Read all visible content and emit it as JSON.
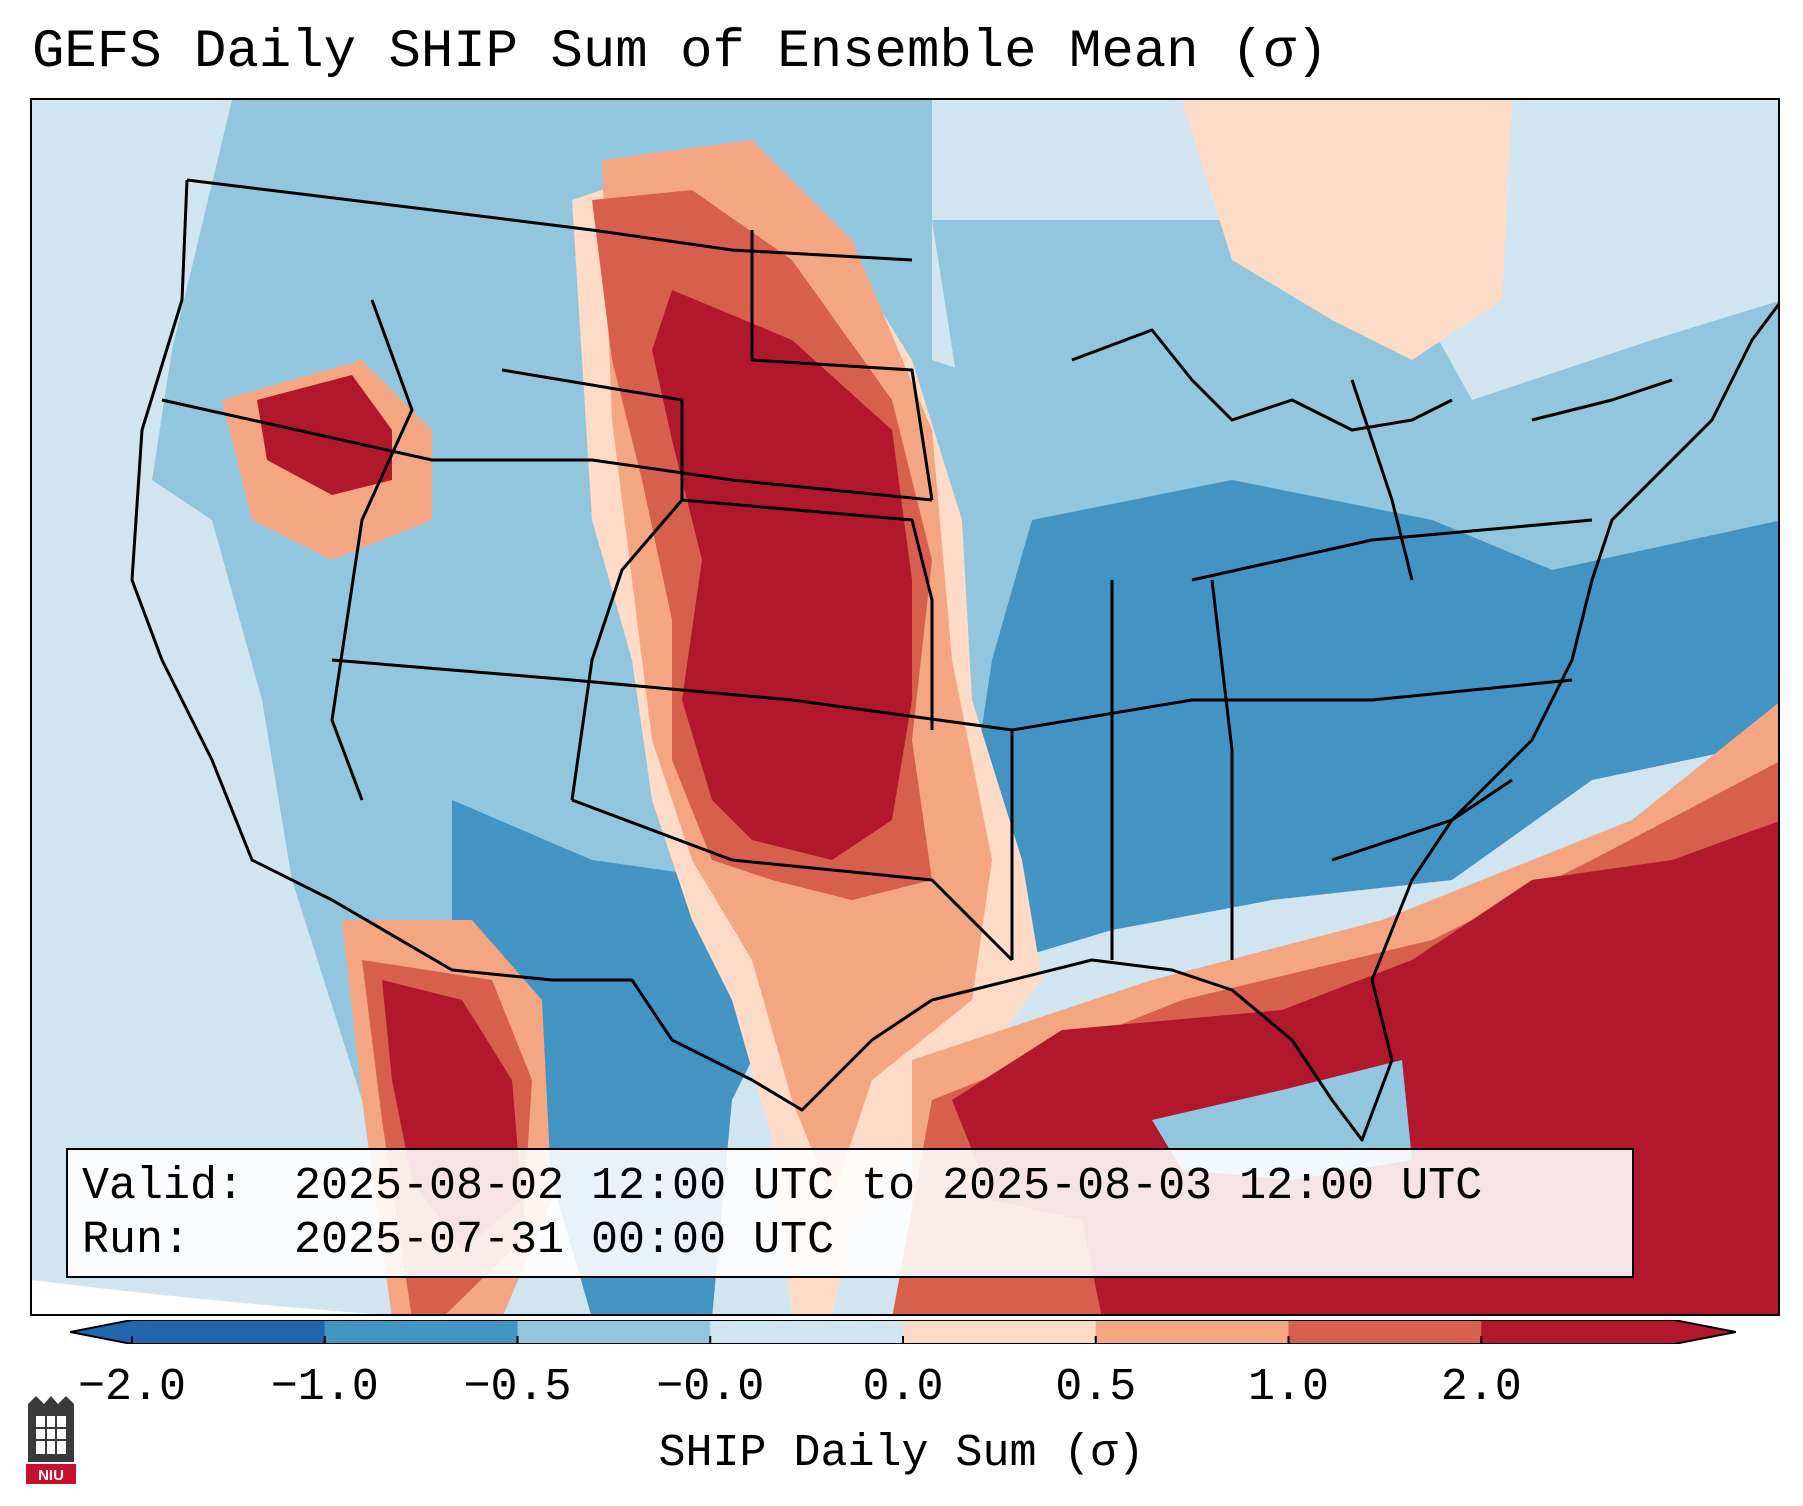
{
  "title": "GEFS Daily SHIP Sum of Ensemble Mean (σ)",
  "info": {
    "valid_label": "Valid:",
    "valid_value": "2025-08-02 12:00 UTC to 2025-08-03 12:00 UTC",
    "run_label": "Run:",
    "run_value": "2025-07-31 00:00 UTC"
  },
  "colorbar": {
    "label": "SHIP Daily Sum (σ)",
    "ticks": [
      "−2.0",
      "−1.0",
      "−0.5",
      "−0.0",
      "0.0",
      "0.5",
      "1.0",
      "2.0"
    ],
    "colors": [
      "#2166ac",
      "#4393c3",
      "#92c5de",
      "#d1e5f0",
      "#fddbc7",
      "#f4a582",
      "#d6604d",
      "#b2182b"
    ],
    "extend": "both"
  },
  "logo": {
    "text": "NIU"
  },
  "legend_colors": {
    "strong_negative": "#4393c3",
    "negative": "#92c5de",
    "weak_negative": "#d1e5f0",
    "weak_positive": "#fddbc7",
    "positive": "#f4a582",
    "moderate_positive": "#d6604d",
    "strong_positive": "#b2182b"
  }
}
